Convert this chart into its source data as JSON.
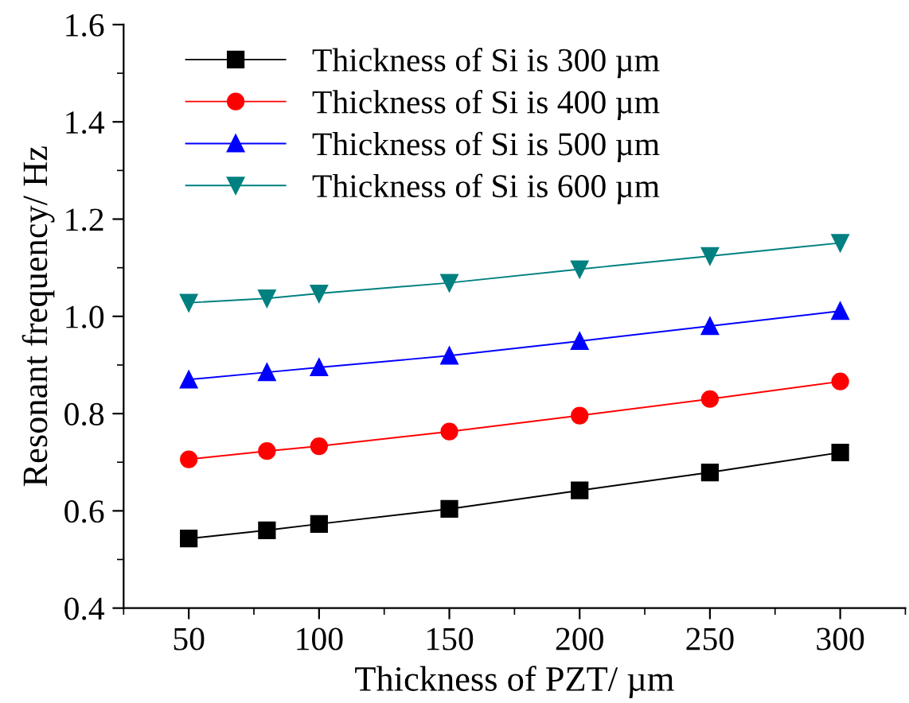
{
  "chart_data": {
    "type": "line",
    "xlabel": "Thickness of PZT/ µm",
    "ylabel": "Resonant frequency/ Hz",
    "x": [
      50,
      80,
      100,
      150,
      200,
      250,
      300
    ],
    "series": [
      {
        "name": "Thickness of Si is 300 µm",
        "color": "#000000",
        "marker": "square",
        "values": [
          0.543,
          0.56,
          0.573,
          0.604,
          0.642,
          0.679,
          0.72
        ]
      },
      {
        "name": "Thickness of Si is 400 µm",
        "color": "#ff0000",
        "marker": "circle",
        "values": [
          0.706,
          0.723,
          0.733,
          0.763,
          0.796,
          0.83,
          0.866
        ]
      },
      {
        "name": "Thickness of Si is 500 µm",
        "color": "#0000ff",
        "marker": "triangle",
        "values": [
          0.87,
          0.885,
          0.895,
          0.919,
          0.949,
          0.98,
          1.011
        ]
      },
      {
        "name": "Thickness of Si is 600 µm",
        "color": "#008080",
        "marker": "triangle_down",
        "values": [
          1.028,
          1.037,
          1.047,
          1.069,
          1.097,
          1.124,
          1.151
        ]
      }
    ],
    "xlim": [
      25,
      325
    ],
    "xticks": [
      50,
      100,
      150,
      200,
      250,
      300
    ],
    "ylim": [
      0.4,
      1.6
    ],
    "yticks": [
      {
        "value": 0.4,
        "label": "0.4"
      },
      {
        "value": 0.6,
        "label": "0.6"
      },
      {
        "value": 0.8,
        "label": "0.8"
      },
      {
        "value": 1.0,
        "label": "1.0"
      },
      {
        "value": 1.2,
        "label": "1.2"
      },
      {
        "value": 1.4,
        "label": "1.4"
      },
      {
        "value": 1.6,
        "label": "1.6"
      }
    ],
    "legend": "top left",
    "grid": false,
    "line_style": "solid"
  }
}
